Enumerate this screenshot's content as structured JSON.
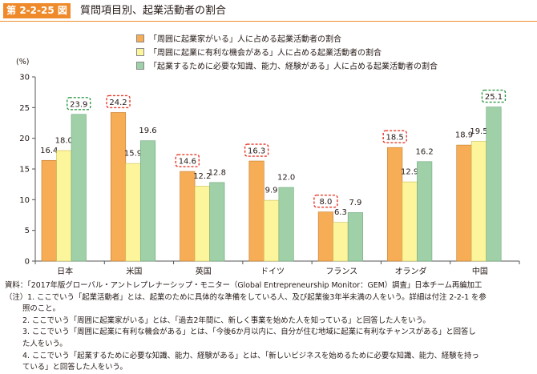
{
  "header": {
    "figure_label": "第 2-2-25 図",
    "title": "質問項目別、起業活動者の割合"
  },
  "colors": {
    "accent": "#ef8a2b",
    "series": [
      "#f6ad55",
      "#fdf59b",
      "#9fd0a8"
    ],
    "highlight_box": "#e83828",
    "highlight_box_green": "#2e9a44"
  },
  "chart_data": {
    "type": "bar",
    "categories": [
      "日本",
      "米国",
      "英国",
      "ドイツ",
      "フランス",
      "オランダ",
      "中国"
    ],
    "series": [
      {
        "name": "「周囲に起業家がいる」人に占める起業活動者の割合",
        "values": [
          16.4,
          24.2,
          14.6,
          16.3,
          8.0,
          18.5,
          18.9
        ]
      },
      {
        "name": "「周囲に起業に有利な機会がある」人に占める起業活動者の割合",
        "values": [
          18.0,
          15.9,
          12.2,
          9.9,
          6.3,
          12.9,
          19.5
        ]
      },
      {
        "name": "「起業するために必要な知識、能力、経験がある」人に占める起業活動者の割合",
        "values": [
          23.9,
          19.6,
          12.8,
          12.0,
          7.9,
          16.2,
          25.1
        ]
      }
    ],
    "labels": [
      [
        "16.4",
        "18.0",
        "23.9"
      ],
      [
        "24.2",
        "15.9",
        "19.6"
      ],
      [
        "14.6",
        "12.2",
        "12.8"
      ],
      [
        "16.3",
        "9.9",
        "12.0"
      ],
      [
        "8.0",
        "6.3",
        "7.9"
      ],
      [
        "18.5",
        "12.9",
        "16.2"
      ],
      [
        "18.9",
        "19.5",
        "25.1"
      ]
    ],
    "highlighted": [
      {
        "category": 0,
        "series": 2,
        "color": "green"
      },
      {
        "category": 1,
        "series": 0,
        "color": "red"
      },
      {
        "category": 2,
        "series": 0,
        "color": "red"
      },
      {
        "category": 3,
        "series": 0,
        "color": "red"
      },
      {
        "category": 4,
        "series": 0,
        "color": "red"
      },
      {
        "category": 5,
        "series": 0,
        "color": "red"
      },
      {
        "category": 6,
        "series": 2,
        "color": "green"
      }
    ],
    "ylabel": "(%)",
    "ylim": [
      0,
      30
    ],
    "yticks": [
      0,
      5,
      10,
      15,
      20,
      25,
      30
    ],
    "ytick_labels": [
      "0",
      "5",
      "10",
      "15",
      "20",
      "25",
      "30"
    ],
    "grid": false,
    "legend_position": "top"
  },
  "notes": [
    {
      "text": "資料：「2017年版グローバル・アントレプレナーシップ・モニター（Global Entrepreneurship Monitor：GEM）調査」日本チーム再編加工",
      "indent": false
    },
    {
      "text": "（注）1. ここでいう「起業活動者」とは、起業のために具体的な準備をしている人、及び起業後3年半未満の人をいう。詳細は付注 2-2-1 を参",
      "indent": false
    },
    {
      "text": "照のこと。",
      "indent": true
    },
    {
      "text": "2. ここでいう「周囲に起業家がいる」とは、「過去2年間に、新しく事業を始めた人を知っている」と回答した人をいう。",
      "indent": true
    },
    {
      "text": "3. ここでいう「周囲に起業に有利な機会がある」とは、「今後6か月以内に、自分が住む地域に起業に有利なチャンスがある」と回答し",
      "indent": true
    },
    {
      "text": "た人をいう。",
      "indent": true
    },
    {
      "text": "4. ここでいう「起業するために必要な知識、能力、経験がある」とは、「新しいビジネスを始めるために必要な知識、能力、経験を持っ",
      "indent": true
    },
    {
      "text": "ている」と回答した人をいう。",
      "indent": true
    }
  ]
}
